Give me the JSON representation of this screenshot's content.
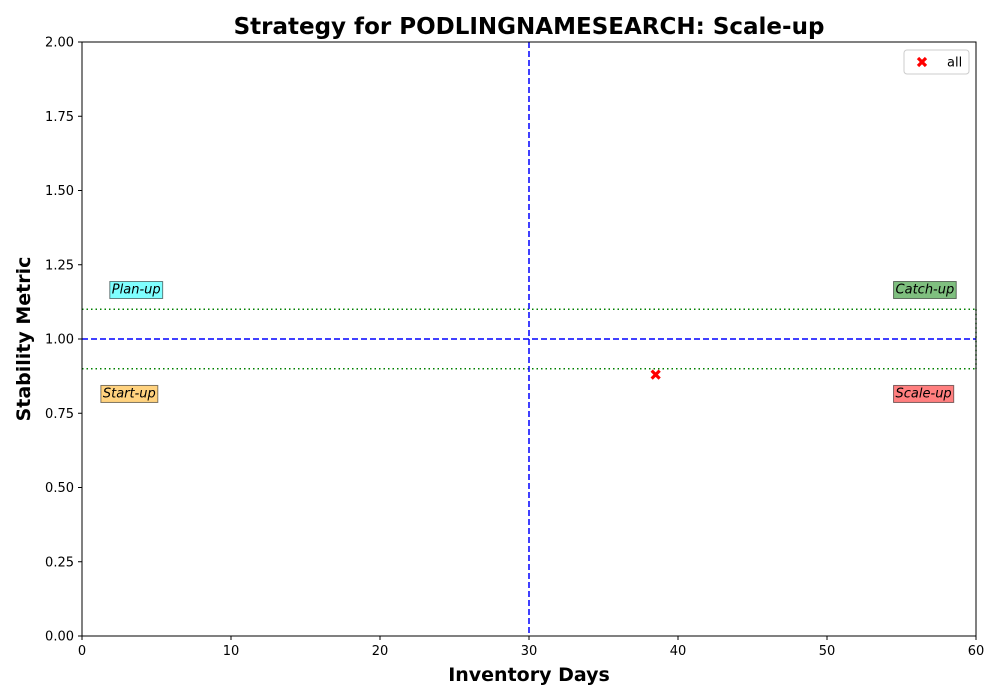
{
  "chart_data": {
    "type": "scatter",
    "title": "Strategy for PODLINGNAMESEARCH: Scale-up",
    "xlabel": "Inventory Days",
    "ylabel": "Stability Metric",
    "xlim": [
      0,
      60
    ],
    "ylim": [
      0,
      2.0
    ],
    "x_ticks": [
      "0",
      "10",
      "20",
      "30",
      "40",
      "50",
      "60"
    ],
    "y_ticks": [
      "0.00",
      "0.25",
      "0.50",
      "0.75",
      "1.00",
      "1.25",
      "1.50",
      "1.75",
      "2.00"
    ],
    "grid": false,
    "legend_position": "top-right",
    "series": [
      {
        "name": "all",
        "color": "#ff0000",
        "marker": "x",
        "points": [
          {
            "x": 38.5,
            "y": 0.88
          }
        ]
      }
    ],
    "reference_lines": {
      "vertical_dashed_x": 30,
      "horizontal_dashed_y": 1.0,
      "dotted_band": [
        0.9,
        1.1
      ],
      "dashed_color": "#0000ff",
      "dotted_color": "#008000"
    },
    "quadrant_labels": [
      {
        "text": "Plan-up",
        "x": 2.0,
        "y": 1.17,
        "color": "#00ffff"
      },
      {
        "text": "Catch-up",
        "x": 54.6,
        "y": 1.17,
        "color": "#008000"
      },
      {
        "text": "Start-up",
        "x": 1.4,
        "y": 0.82,
        "color": "#ffa500"
      },
      {
        "text": "Scale-up",
        "x": 54.6,
        "y": 0.82,
        "color": "#ff0000"
      }
    ]
  }
}
